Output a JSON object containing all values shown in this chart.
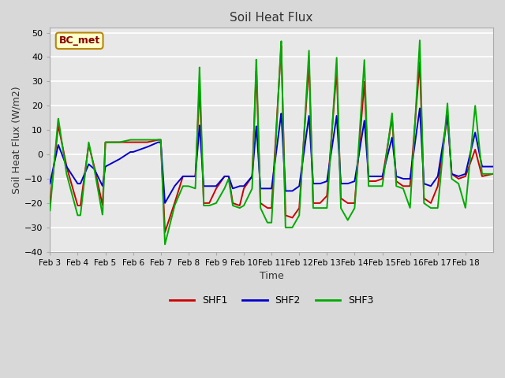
{
  "title": "Soil Heat Flux",
  "xlabel": "Time",
  "ylabel": "Soil Heat Flux (W/m2)",
  "ylim": [
    -40,
    52
  ],
  "background_color": "#d8d8d8",
  "plot_bg_color": "#e8e8e8",
  "annotation_text": "BC_met",
  "annotation_bg": "#ffffcc",
  "annotation_border": "#b8860b",
  "legend_entries": [
    "SHF1",
    "SHF2",
    "SHF3"
  ],
  "line_colors": [
    "#cc0000",
    "#0000cc",
    "#00aa00"
  ],
  "tick_labels": [
    "Feb 3",
    "Feb 4",
    "Feb 5",
    "Feb 6",
    "Feb 7",
    "Feb 8",
    "Feb 9",
    "Feb 10",
    "Feb 11",
    "Feb 12",
    "Feb 13",
    "Feb 14",
    "Feb 15",
    "Feb 16",
    "Feb 17",
    "Feb 18"
  ]
}
